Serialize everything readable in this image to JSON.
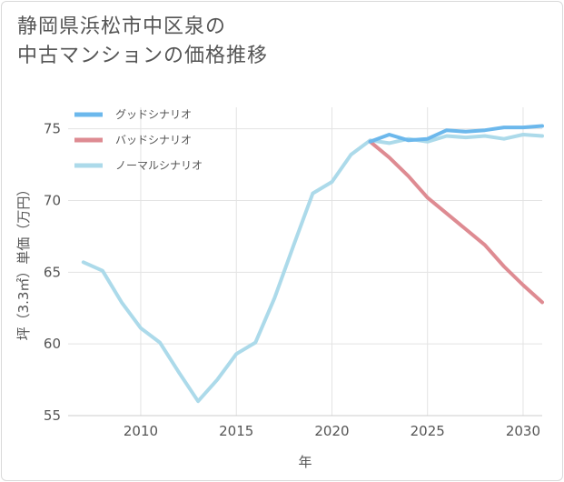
{
  "title_line1": "静岡県浜松市中区泉の",
  "title_line2": "中古マンションの価格推移",
  "chart_data": {
    "type": "line",
    "xlabel": "年",
    "ylabel": "坪（3.3㎡）単価（万円）",
    "xlim": [
      2006.2,
      2031
    ],
    "ylim": [
      55,
      76.5
    ],
    "x_ticks": [
      2010,
      2015,
      2020,
      2025,
      2030
    ],
    "y_ticks": [
      55,
      60,
      65,
      70,
      75
    ],
    "grid": true,
    "legend_position": "top-left",
    "series": [
      {
        "name": "グッドシナリオ",
        "color": "#6cb8ec",
        "x": [
          2022,
          2023,
          2024,
          2025,
          2026,
          2027,
          2028,
          2029,
          2030,
          2031
        ],
        "values": [
          74.1,
          74.6,
          74.2,
          74.3,
          74.9,
          74.8,
          74.9,
          75.1,
          75.1,
          75.2
        ]
      },
      {
        "name": "バッドシナリオ",
        "color": "#de8b92",
        "x": [
          2022,
          2023,
          2024,
          2025,
          2026,
          2027,
          2028,
          2029,
          2030,
          2031
        ],
        "values": [
          74.1,
          73.0,
          71.7,
          70.2,
          69.1,
          68.0,
          66.9,
          65.4,
          64.1,
          62.9
        ]
      },
      {
        "name": "ノーマルシナリオ",
        "color": "#acdaea",
        "x": [
          2007,
          2008,
          2009,
          2010,
          2011,
          2012,
          2013,
          2014,
          2015,
          2016,
          2017,
          2018,
          2019,
          2020,
          2021,
          2022,
          2023,
          2024,
          2025,
          2026,
          2027,
          2028,
          2029,
          2030,
          2031
        ],
        "values": [
          65.7,
          65.1,
          62.9,
          61.1,
          60.1,
          58.0,
          56.0,
          57.5,
          59.3,
          60.1,
          63.2,
          66.9,
          70.5,
          71.3,
          73.2,
          74.2,
          74.0,
          74.3,
          74.1,
          74.5,
          74.4,
          74.5,
          74.3,
          74.6,
          74.5
        ]
      }
    ]
  }
}
